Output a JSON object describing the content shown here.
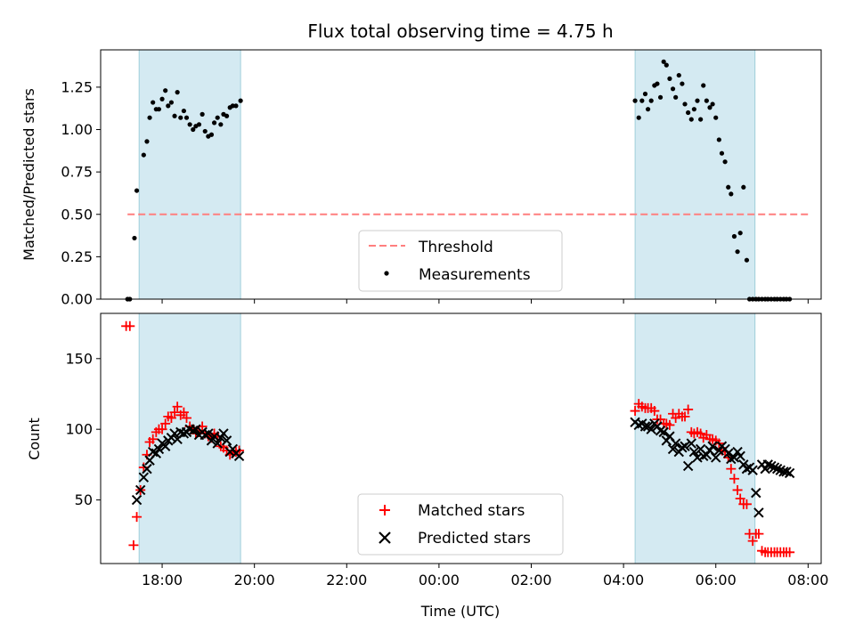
{
  "chart_data": [
    {
      "type": "scatter",
      "title": "Flux total observing time = 4.75 h",
      "xlabel": "",
      "ylabel": "Matched/Predicted stars",
      "xlim": [
        16.667,
        32.283
      ],
      "ylim": [
        0,
        1.47
      ],
      "yticks": [
        0.0,
        0.25,
        0.5,
        0.75,
        1.0,
        1.25
      ],
      "ytick_labels": [
        "0.00",
        "0.25",
        "0.50",
        "0.75",
        "1.00",
        "1.25"
      ],
      "xticks": [
        18,
        20,
        22,
        24,
        26,
        28,
        30,
        32
      ],
      "shaded_intervals": [
        [
          17.5,
          19.7
        ],
        [
          28.25,
          30.85
        ]
      ],
      "threshold": {
        "name": "Threshold",
        "value": 0.5,
        "x": [
          17.25,
          32.05
        ],
        "color": "#ff7f7f"
      },
      "legend": {
        "placement": "lower-center",
        "entries": [
          "Threshold",
          "Measurements"
        ]
      },
      "series": [
        {
          "name": "Measurements",
          "marker": "dot",
          "color": "#000000",
          "x": [
            17.25,
            17.3,
            17.4,
            17.45,
            17.6,
            17.67,
            17.73,
            17.8,
            17.87,
            17.93,
            18.0,
            18.07,
            18.13,
            18.2,
            18.27,
            18.33,
            18.4,
            18.47,
            18.53,
            18.6,
            18.67,
            18.73,
            18.8,
            18.87,
            18.93,
            19.0,
            19.07,
            19.13,
            19.2,
            19.27,
            19.33,
            19.4,
            19.47,
            19.53,
            19.6,
            19.7,
            28.25,
            28.33,
            28.4,
            28.47,
            28.53,
            28.6,
            28.67,
            28.73,
            28.8,
            28.87,
            28.93,
            29.0,
            29.07,
            29.13,
            29.2,
            29.27,
            29.33,
            29.4,
            29.47,
            29.53,
            29.6,
            29.67,
            29.73,
            29.8,
            29.87,
            29.93,
            30.0,
            30.07,
            30.13,
            30.2,
            30.27,
            30.33,
            30.4,
            30.47,
            30.53,
            30.6,
            30.67,
            30.73,
            30.8,
            30.87,
            30.93,
            31.0,
            31.07,
            31.13,
            31.2,
            31.27,
            31.33,
            31.4,
            31.47,
            31.53,
            31.6
          ],
          "y": [
            0.0,
            0.0,
            0.36,
            0.64,
            0.85,
            0.93,
            1.07,
            1.16,
            1.12,
            1.12,
            1.18,
            1.23,
            1.14,
            1.16,
            1.08,
            1.22,
            1.07,
            1.11,
            1.07,
            1.03,
            1.0,
            1.02,
            1.03,
            1.09,
            0.99,
            0.96,
            0.97,
            1.04,
            1.07,
            1.03,
            1.09,
            1.08,
            1.13,
            1.14,
            1.14,
            1.17,
            1.17,
            1.07,
            1.17,
            1.21,
            1.12,
            1.17,
            1.26,
            1.27,
            1.19,
            1.4,
            1.38,
            1.3,
            1.24,
            1.19,
            1.32,
            1.27,
            1.15,
            1.1,
            1.06,
            1.12,
            1.17,
            1.06,
            1.26,
            1.17,
            1.13,
            1.15,
            1.07,
            0.94,
            0.86,
            0.81,
            0.66,
            0.62,
            0.37,
            0.28,
            0.39,
            0.66,
            0.23,
            0.0,
            0.0,
            0.0,
            0.0,
            0.0,
            0.0,
            0.0,
            0.0,
            0.0,
            0.0,
            0.0,
            0.0,
            0.0,
            0.0
          ]
        }
      ]
    },
    {
      "type": "scatter",
      "title": "",
      "xlabel": "Time (UTC)",
      "ylabel": "Count",
      "xlim": [
        16.667,
        32.283
      ],
      "ylim": [
        5,
        182
      ],
      "yticks": [
        50,
        100,
        150
      ],
      "ytick_labels": [
        "50",
        "100",
        "150"
      ],
      "xticks": [
        18,
        20,
        22,
        24,
        26,
        28,
        30,
        32
      ],
      "xtick_labels": [
        "18:00",
        "20:00",
        "22:00",
        "00:00",
        "02:00",
        "04:00",
        "06:00",
        "08:00"
      ],
      "shaded_intervals": [
        [
          17.5,
          19.7
        ],
        [
          28.25,
          30.85
        ]
      ],
      "legend": {
        "placement": "lower-center",
        "entries": [
          "Matched stars",
          "Predicted stars"
        ]
      },
      "series": [
        {
          "name": "Matched stars",
          "marker": "plus",
          "color": "#ff0000",
          "x": [
            17.22,
            17.3,
            17.38,
            17.45,
            17.53,
            17.6,
            17.67,
            17.73,
            17.8,
            17.87,
            17.93,
            18.0,
            18.07,
            18.13,
            18.2,
            18.27,
            18.33,
            18.4,
            18.47,
            18.53,
            18.6,
            18.67,
            18.73,
            18.8,
            18.87,
            18.93,
            19.0,
            19.07,
            19.13,
            19.2,
            19.27,
            19.33,
            19.4,
            19.47,
            19.53,
            19.6,
            19.67,
            28.25,
            28.33,
            28.4,
            28.47,
            28.53,
            28.6,
            28.67,
            28.73,
            28.8,
            28.87,
            28.93,
            29.0,
            29.07,
            29.13,
            29.2,
            29.27,
            29.33,
            29.4,
            29.47,
            29.53,
            29.6,
            29.67,
            29.73,
            29.8,
            29.87,
            29.93,
            30.0,
            30.07,
            30.13,
            30.2,
            30.27,
            30.33,
            30.4,
            30.47,
            30.53,
            30.6,
            30.67,
            30.73,
            30.8,
            30.87,
            30.93,
            31.0,
            31.07,
            31.13,
            31.2,
            31.27,
            31.33,
            31.4,
            31.47,
            31.53,
            31.6
          ],
          "y": [
            173,
            173,
            18,
            38,
            57,
            73,
            82,
            91,
            93,
            98,
            100,
            100,
            104,
            109,
            108,
            112,
            116,
            110,
            112,
            108,
            102,
            100,
            97,
            98,
            102,
            97,
            95,
            94,
            97,
            95,
            88,
            87,
            85,
            82,
            83,
            84,
            85,
            113,
            118,
            116,
            115,
            115,
            115,
            113,
            107,
            107,
            104,
            104,
            103,
            111,
            108,
            111,
            109,
            109,
            114,
            98,
            97,
            98,
            97,
            94,
            96,
            93,
            93,
            92,
            90,
            85,
            84,
            80,
            72,
            65,
            57,
            51,
            47,
            47,
            26,
            21,
            26,
            26,
            14,
            13,
            13,
            13,
            13,
            13,
            13,
            13,
            13,
            13
          ]
        },
        {
          "name": "Predicted stars",
          "marker": "x",
          "color": "#000000",
          "x": [
            17.45,
            17.53,
            17.6,
            17.67,
            17.73,
            17.8,
            17.87,
            17.93,
            18.0,
            18.07,
            18.13,
            18.2,
            18.27,
            18.33,
            18.4,
            18.47,
            18.53,
            18.6,
            18.67,
            18.73,
            18.8,
            18.87,
            18.93,
            19.0,
            19.07,
            19.13,
            19.2,
            19.27,
            19.33,
            19.4,
            19.47,
            19.53,
            19.6,
            19.67,
            28.25,
            28.33,
            28.4,
            28.47,
            28.53,
            28.6,
            28.67,
            28.73,
            28.8,
            28.87,
            28.93,
            29.0,
            29.07,
            29.13,
            29.2,
            29.27,
            29.33,
            29.4,
            29.47,
            29.53,
            29.6,
            29.67,
            29.73,
            29.8,
            29.87,
            29.93,
            30.0,
            30.07,
            30.13,
            30.2,
            30.27,
            30.33,
            30.4,
            30.47,
            30.53,
            30.6,
            30.67,
            30.73,
            30.8,
            30.87,
            30.93,
            31.0,
            31.07,
            31.13,
            31.2,
            31.27,
            31.33,
            31.4,
            31.47,
            31.53,
            31.6
          ],
          "y": [
            50,
            57,
            66,
            72,
            78,
            84,
            83,
            86,
            90,
            88,
            92,
            94,
            97,
            93,
            98,
            97,
            98,
            100,
            99,
            100,
            96,
            98,
            96,
            97,
            92,
            95,
            90,
            94,
            97,
            92,
            84,
            86,
            83,
            81,
            105,
            103,
            104,
            102,
            102,
            100,
            104,
            102,
            99,
            98,
            92,
            95,
            86,
            90,
            84,
            87,
            88,
            74,
            90,
            84,
            80,
            86,
            81,
            82,
            85,
            88,
            80,
            85,
            88,
            86,
            83,
            79,
            80,
            84,
            81,
            75,
            72,
            73,
            71,
            55,
            41,
            75,
            72,
            75,
            74,
            73,
            72,
            71,
            70,
            70,
            69
          ]
        }
      ]
    }
  ]
}
